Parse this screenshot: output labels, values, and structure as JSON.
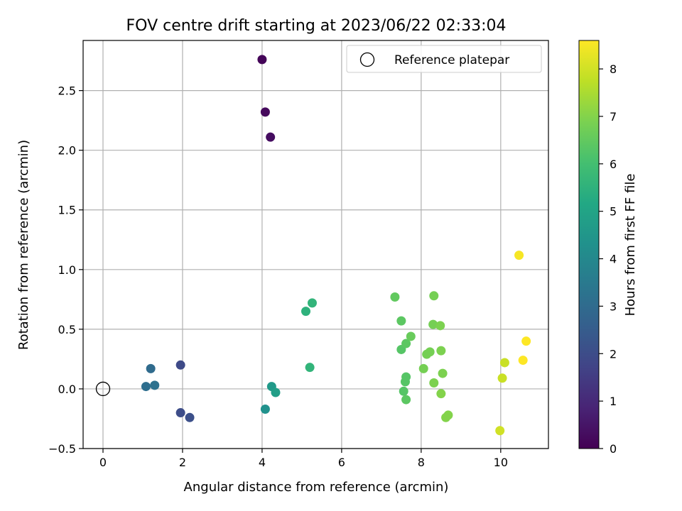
{
  "chart_data": {
    "type": "scatter",
    "title": "FOV centre drift starting at 2023/06/22 02:33:04",
    "xlabel": "Angular distance from reference (arcmin)",
    "ylabel": "Rotation from reference (arcmin)",
    "xlim": [
      -0.5,
      11.2
    ],
    "ylim": [
      -0.5,
      2.92
    ],
    "xticks": [
      0,
      2,
      4,
      6,
      8,
      10
    ],
    "yticks": [
      -0.5,
      0.0,
      0.5,
      1.0,
      1.5,
      2.0,
      2.5
    ],
    "ytick_labels": [
      "−0.5",
      "0.0",
      "0.5",
      "1.0",
      "1.5",
      "2.0",
      "2.5"
    ],
    "grid": true,
    "legend": {
      "placement": "top-right",
      "entries": [
        "Reference platepar"
      ]
    },
    "reference_point": {
      "x": 0,
      "y": 0,
      "label": "Reference platepar",
      "marker": "open-circle"
    },
    "colorbar": {
      "label": "Hours from first FF file",
      "range": [
        0,
        8.6
      ],
      "ticks": [
        0,
        1,
        2,
        3,
        4,
        5,
        6,
        7,
        8
      ],
      "colormap": "viridis"
    },
    "points": [
      {
        "x": 4.0,
        "y": 2.76,
        "c": 0.1
      },
      {
        "x": 4.08,
        "y": 2.32,
        "c": 0.2
      },
      {
        "x": 4.21,
        "y": 2.11,
        "c": 0.3
      },
      {
        "x": 1.95,
        "y": 0.2,
        "c": 1.9
      },
      {
        "x": 1.95,
        "y": -0.2,
        "c": 2.0
      },
      {
        "x": 2.18,
        "y": -0.24,
        "c": 2.1
      },
      {
        "x": 1.2,
        "y": 0.17,
        "c": 3.0
      },
      {
        "x": 1.08,
        "y": 0.02,
        "c": 3.1
      },
      {
        "x": 1.3,
        "y": 0.03,
        "c": 3.2
      },
      {
        "x": 4.08,
        "y": -0.17,
        "c": 4.3
      },
      {
        "x": 4.24,
        "y": 0.02,
        "c": 4.6
      },
      {
        "x": 4.34,
        "y": -0.03,
        "c": 4.8
      },
      {
        "x": 5.1,
        "y": 0.65,
        "c": 5.5
      },
      {
        "x": 5.26,
        "y": 0.72,
        "c": 5.6
      },
      {
        "x": 5.2,
        "y": 0.18,
        "c": 5.6
      },
      {
        "x": 7.34,
        "y": 0.77,
        "c": 6.5
      },
      {
        "x": 7.5,
        "y": 0.57,
        "c": 6.4
      },
      {
        "x": 7.5,
        "y": 0.33,
        "c": 6.3
      },
      {
        "x": 7.62,
        "y": 0.38,
        "c": 6.4
      },
      {
        "x": 7.74,
        "y": 0.44,
        "c": 6.6
      },
      {
        "x": 7.62,
        "y": 0.1,
        "c": 6.3
      },
      {
        "x": 7.6,
        "y": 0.06,
        "c": 6.3
      },
      {
        "x": 7.56,
        "y": -0.02,
        "c": 6.3
      },
      {
        "x": 7.62,
        "y": -0.09,
        "c": 6.4
      },
      {
        "x": 8.32,
        "y": 0.78,
        "c": 6.8
      },
      {
        "x": 8.3,
        "y": 0.54,
        "c": 6.8
      },
      {
        "x": 8.48,
        "y": 0.53,
        "c": 6.9
      },
      {
        "x": 8.14,
        "y": 0.29,
        "c": 6.8
      },
      {
        "x": 8.22,
        "y": 0.31,
        "c": 6.8
      },
      {
        "x": 8.5,
        "y": 0.32,
        "c": 6.9
      },
      {
        "x": 8.06,
        "y": 0.17,
        "c": 6.8
      },
      {
        "x": 8.54,
        "y": 0.13,
        "c": 6.9
      },
      {
        "x": 8.32,
        "y": 0.05,
        "c": 6.9
      },
      {
        "x": 8.5,
        "y": -0.04,
        "c": 7.0
      },
      {
        "x": 8.68,
        "y": -0.22,
        "c": 7.0
      },
      {
        "x": 8.62,
        "y": -0.24,
        "c": 7.0
      },
      {
        "x": 10.1,
        "y": 0.22,
        "c": 7.9
      },
      {
        "x": 10.04,
        "y": 0.09,
        "c": 7.9
      },
      {
        "x": 9.98,
        "y": -0.35,
        "c": 8.0
      },
      {
        "x": 10.46,
        "y": 1.12,
        "c": 8.5
      },
      {
        "x": 10.64,
        "y": 0.4,
        "c": 8.6
      },
      {
        "x": 10.56,
        "y": 0.24,
        "c": 8.6
      }
    ]
  }
}
